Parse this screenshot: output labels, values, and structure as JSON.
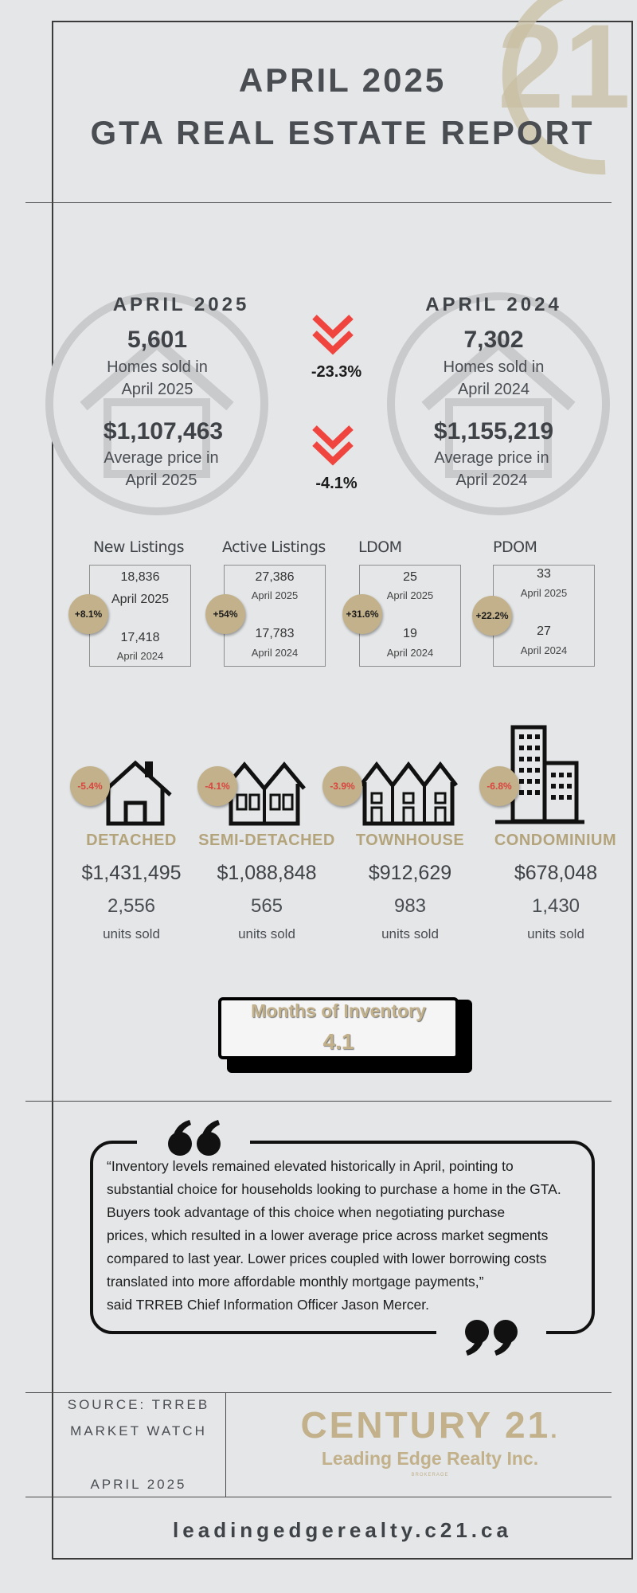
{
  "header": {
    "line1": "APRIL 2025",
    "line2": "GTA REAL ESTATE REPORT"
  },
  "comparison": {
    "left": {
      "heading": "APRIL 2025",
      "homes_sold": "5,601",
      "homes_label_1": "Homes sold in",
      "homes_label_2": "April 2025",
      "avg_price": "$1,107,463",
      "price_label_1": "Average price in",
      "price_label_2": "April 2025"
    },
    "right": {
      "heading": "APRIL 2024",
      "homes_sold": "7,302",
      "homes_label_1": "Homes sold in",
      "homes_label_2": "April 2024",
      "avg_price": "$1,155,219",
      "price_label_1": "Average price in",
      "price_label_2": "April 2024"
    },
    "homes_change": "-23.3%",
    "price_change": "-4.1%"
  },
  "stats": [
    {
      "label": "New Listings",
      "change": "+8.1%",
      "v2025": "18,836",
      "y2025": "April 2025",
      "v2024": "17,418",
      "y2024": "April 2024"
    },
    {
      "label": "Active Listings",
      "change": "+54%",
      "v2025": "27,386",
      "y2025": "April 2025",
      "v2024": "17,783",
      "y2024": "April 2024"
    },
    {
      "label": "LDOM",
      "change": "+31.6%",
      "v2025": "25",
      "y2025": "April 2025",
      "v2024": "19",
      "y2024": "April 2024"
    },
    {
      "label": "PDOM",
      "change": "+22.2%",
      "v2025": "33",
      "y2025": "April 2025",
      "v2024": "27",
      "y2024": "April 2024"
    }
  ],
  "property_types": [
    {
      "change": "-5.4%",
      "name": "DETACHED",
      "price": "$1,431,495",
      "units": "2,556",
      "units_label": "units sold",
      "icon": "detached-house-icon"
    },
    {
      "change": "-4.1%",
      "name": "SEMI-DETACHED",
      "price": "$1,088,848",
      "units": "565",
      "units_label": "units sold",
      "icon": "semi-detached-icon"
    },
    {
      "change": "-3.9%",
      "name": "TOWNHOUSE",
      "price": "$912,629",
      "units": "983",
      "units_label": "units sold",
      "icon": "townhouse-icon"
    },
    {
      "change": "-6.8%",
      "name": "CONDOMINIUM",
      "price": "$678,048",
      "units": "1,430",
      "units_label": "units sold",
      "icon": "condominium-icon"
    }
  ],
  "inventory": {
    "label": "Months of Inventory",
    "value": "4.1"
  },
  "quote": {
    "lines": [
      "“Inventory levels remained elevated historically in April, pointing to",
      "substantial choice for households looking to purchase a home in the GTA.",
      "Buyers took advantage of this choice when negotiating purchase",
      "prices, which resulted in a lower average price across market segments",
      "compared to last year. Lower prices coupled with lower borrowing costs",
      "translated into more affordable monthly mortgage payments,”",
      "said TRREB Chief Information Officer Jason Mercer."
    ]
  },
  "footer": {
    "source_1": "SOURCE: TRREB",
    "source_2": "MARKET WATCH",
    "source_date": "APRIL 2025",
    "brand": "CENTURY 21",
    "brand_mark": ".",
    "brokerage": "Leading Edge Realty Inc.",
    "brokerage_small": "BROKERAGE",
    "website": "leadingedgerealty.c21.ca"
  },
  "colors": {
    "accent_gold": "#c2b18a",
    "arrow_red": "#f0443e",
    "text_dark": "#3f4246",
    "background": "#e4e6e8"
  }
}
